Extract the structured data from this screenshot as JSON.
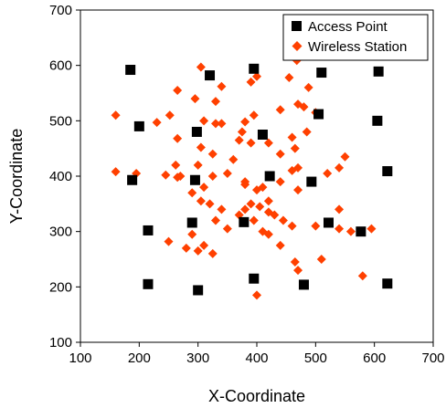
{
  "chart_data": {
    "type": "scatter",
    "xlabel": "X-Coordinate",
    "ylabel": "Y-Coordinate",
    "xlim": [
      100,
      700
    ],
    "ylim": [
      100,
      700
    ],
    "x_ticks": [
      100,
      200,
      300,
      400,
      500,
      600,
      700
    ],
    "y_ticks": [
      100,
      200,
      300,
      400,
      500,
      600,
      700
    ],
    "grid": false,
    "legend_position": "top-right",
    "series": [
      {
        "name": "Access Point",
        "marker": "square",
        "color": "#000000",
        "points": [
          [
            185,
            592
          ],
          [
            320,
            582
          ],
          [
            395,
            594
          ],
          [
            510,
            587
          ],
          [
            607,
            589
          ],
          [
            200,
            490
          ],
          [
            298,
            480
          ],
          [
            410,
            475
          ],
          [
            505,
            512
          ],
          [
            605,
            500
          ],
          [
            188,
            393
          ],
          [
            295,
            393
          ],
          [
            422,
            400
          ],
          [
            493,
            390
          ],
          [
            622,
            409
          ],
          [
            215,
            302
          ],
          [
            290,
            316
          ],
          [
            378,
            317
          ],
          [
            522,
            316
          ],
          [
            577,
            300
          ],
          [
            215,
            205
          ],
          [
            300,
            194
          ],
          [
            395,
            215
          ],
          [
            480,
            204
          ],
          [
            622,
            206
          ]
        ]
      },
      {
        "name": "Wireless Station",
        "marker": "diamond",
        "color": "#ff4000",
        "points": [
          [
            305,
            597
          ],
          [
            468,
            609
          ],
          [
            400,
            580
          ],
          [
            265,
            555
          ],
          [
            340,
            562
          ],
          [
            390,
            570
          ],
          [
            455,
            578
          ],
          [
            488,
            560
          ],
          [
            230,
            497
          ],
          [
            252,
            510
          ],
          [
            295,
            540
          ],
          [
            330,
            535
          ],
          [
            310,
            500
          ],
          [
            340,
            495
          ],
          [
            380,
            498
          ],
          [
            395,
            510
          ],
          [
            440,
            520
          ],
          [
            470,
            530
          ],
          [
            480,
            525
          ],
          [
            500,
            515
          ],
          [
            160,
            510
          ],
          [
            265,
            468
          ],
          [
            305,
            452
          ],
          [
            325,
            440
          ],
          [
            370,
            465
          ],
          [
            375,
            480
          ],
          [
            420,
            460
          ],
          [
            460,
            470
          ],
          [
            465,
            450
          ],
          [
            485,
            480
          ],
          [
            262,
            420
          ],
          [
            300,
            420
          ],
          [
            310,
            380
          ],
          [
            325,
            400
          ],
          [
            380,
            385
          ],
          [
            400,
            375
          ],
          [
            410,
            380
          ],
          [
            440,
            390
          ],
          [
            460,
            410
          ],
          [
            470,
            415
          ],
          [
            520,
            405
          ],
          [
            540,
            415
          ],
          [
            550,
            435
          ],
          [
            160,
            408
          ],
          [
            195,
            405
          ],
          [
            245,
            402
          ],
          [
            265,
            398
          ],
          [
            290,
            370
          ],
          [
            305,
            355
          ],
          [
            320,
            350
          ],
          [
            330,
            320
          ],
          [
            350,
            305
          ],
          [
            370,
            330
          ],
          [
            380,
            340
          ],
          [
            390,
            350
          ],
          [
            405,
            345
          ],
          [
            420,
            335
          ],
          [
            430,
            330
          ],
          [
            445,
            320
          ],
          [
            460,
            310
          ],
          [
            500,
            310
          ],
          [
            540,
            305
          ],
          [
            595,
            305
          ],
          [
            270,
            400
          ],
          [
            290,
            295
          ],
          [
            300,
            265
          ],
          [
            310,
            275
          ],
          [
            325,
            260
          ],
          [
            250,
            282
          ],
          [
            280,
            270
          ],
          [
            410,
            300
          ],
          [
            420,
            295
          ],
          [
            440,
            275
          ],
          [
            465,
            245
          ],
          [
            470,
            230
          ],
          [
            510,
            250
          ],
          [
            540,
            340
          ],
          [
            560,
            300
          ],
          [
            580,
            220
          ],
          [
            400,
            185
          ],
          [
            380,
            390
          ],
          [
            350,
            405
          ],
          [
            360,
            430
          ],
          [
            440,
            440
          ],
          [
            340,
            340
          ],
          [
            395,
            320
          ],
          [
            420,
            355
          ],
          [
            470,
            375
          ],
          [
            390,
            460
          ],
          [
            330,
            495
          ]
        ]
      }
    ]
  }
}
